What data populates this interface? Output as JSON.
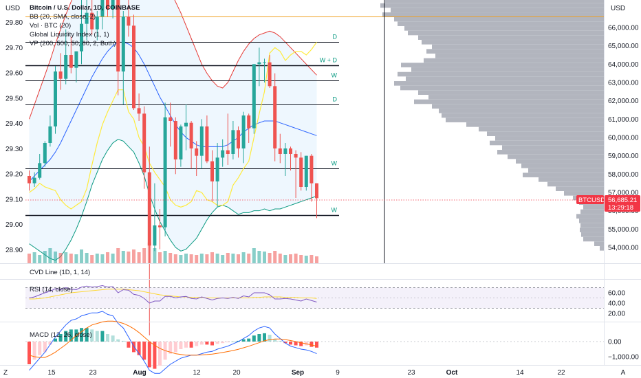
{
  "chart_data": {
    "type": "candlestick",
    "title": "Bitcoin / U.S. Dollar, 1D, COINBASE",
    "currency_left": "USD",
    "currency_right": "USD",
    "symbol_tag": "BTCUSD",
    "last_price": "56,685.21",
    "countdown": "13:29:18",
    "legend": [
      "Bitcoin / U.S. Dollar, 1D, COINBASE",
      "BB (20, SMA, close, 2)",
      "Vol · BTC (20)",
      "Global Liquidity Index (1, 1)",
      "VP (200, 500, 50, 60, 2, Both)"
    ],
    "left_axis": {
      "ticks": [
        29.8,
        29.7,
        29.6,
        29.5,
        29.4,
        29.3,
        29.2,
        29.1,
        29.0,
        28.9
      ],
      "labels": [
        "29.80",
        "29.70",
        "29.60",
        "29.50",
        "29.40",
        "29.30",
        "29.20",
        "29.10",
        "29.00",
        "28.90"
      ]
    },
    "right_axis": {
      "ticks": [
        66000,
        65000,
        64000,
        63000,
        62000,
        61000,
        60000,
        59000,
        58000,
        57000,
        56000,
        55000,
        54000
      ],
      "labels": [
        "66,000.00",
        "65,000.00",
        "64,000.00",
        "63,000.00",
        "62,000.00",
        "61,000.00",
        "60,000.00",
        "59,000.00",
        "58,000.00",
        "57,000.00",
        "56,000.00",
        "55,000.00",
        "54,000.00"
      ],
      "range": [
        53700,
        68400
      ]
    },
    "x_axis": {
      "labels": [
        "Z",
        "15",
        "23",
        "Aug",
        "12",
        "20",
        "Sep",
        "9",
        "23",
        "Oct",
        "14",
        "22",
        "A"
      ]
    },
    "candles": [
      [
        57900,
        58200,
        57100,
        57500
      ],
      [
        57500,
        58100,
        57300,
        57800
      ],
      [
        57800,
        59100,
        57700,
        58600
      ],
      [
        58600,
        59800,
        58400,
        59700
      ],
      [
        59700,
        61200,
        59500,
        60600
      ],
      [
        60600,
        63900,
        60200,
        63600
      ],
      [
        63600,
        64600,
        62600,
        63200
      ],
      [
        63200,
        65900,
        62900,
        64500
      ],
      [
        64500,
        65500,
        63500,
        63800
      ],
      [
        63800,
        64700,
        63000,
        64700
      ],
      [
        64700,
        68400,
        64000,
        66200
      ],
      [
        66200,
        67500,
        65300,
        66800
      ],
      [
        66800,
        67500,
        65600,
        65900
      ],
      [
        65900,
        66900,
        65300,
        66600
      ],
      [
        66600,
        68400,
        65900,
        68000
      ],
      [
        68000,
        68900,
        66600,
        67000
      ],
      [
        67000,
        69800,
        66500,
        68100
      ],
      [
        68100,
        68500,
        62300,
        63600
      ],
      [
        63600,
        66900,
        61800,
        66600
      ],
      [
        66600,
        70500,
        65500,
        66100
      ],
      [
        66100,
        66700,
        61500,
        61600
      ],
      [
        61600,
        62400,
        60900,
        61300
      ],
      [
        61300,
        61700,
        57200,
        58100
      ],
      [
        58100,
        59500,
        49200,
        54100
      ],
      [
        54100,
        57500,
        53800,
        55200
      ],
      [
        55200,
        56100,
        53900,
        55100
      ],
      [
        55100,
        61900,
        54600,
        61100
      ],
      [
        61100,
        61900,
        59500,
        60900
      ],
      [
        60900,
        61100,
        58000,
        58800
      ],
      [
        58800,
        60700,
        58400,
        60600
      ],
      [
        60600,
        61800,
        59300,
        60800
      ],
      [
        60800,
        60900,
        58300,
        59400
      ],
      [
        59400,
        59800,
        57900,
        59000
      ],
      [
        59000,
        61000,
        58300,
        60600
      ],
      [
        60600,
        61200,
        58600,
        58700
      ],
      [
        58700,
        59300,
        56500,
        57600
      ],
      [
        57600,
        59700,
        56200,
        58900
      ],
      [
        58900,
        59900,
        58400,
        59300
      ],
      [
        59300,
        61300,
        58500,
        59100
      ],
      [
        59100,
        60900,
        58800,
        60400
      ],
      [
        60400,
        60600,
        58900,
        59400
      ],
      [
        59400,
        61400,
        58600,
        61200
      ],
      [
        61200,
        61300,
        59700,
        60500
      ],
      [
        60500,
        64000,
        60200,
        64000
      ],
      [
        64000,
        64900,
        62800,
        64100
      ],
      [
        64100,
        64300,
        63000,
        64100
      ],
      [
        64100,
        64500,
        62700,
        62800
      ],
      [
        62800,
        63500,
        58700,
        59400
      ],
      [
        59400,
        60200,
        58600,
        59100
      ],
      [
        59100,
        59700,
        57900,
        59400
      ],
      [
        59400,
        59500,
        58200,
        59100
      ],
      [
        59100,
        59300,
        56700,
        58900
      ],
      [
        58900,
        59200,
        57100,
        57300
      ],
      [
        57300,
        59000,
        57100,
        59000
      ],
      [
        59000,
        59100,
        56500,
        57500
      ],
      [
        57500,
        57500,
        55600,
        56685
      ]
    ],
    "bb_upper": [
      61000,
      61800,
      62600,
      63400,
      64200,
      65100,
      65900,
      66700,
      67400,
      68000,
      68500,
      68900,
      69200,
      69500,
      69800,
      70100,
      70300,
      70500,
      70600,
      70700,
      70600,
      70400,
      70100,
      69900,
      69500,
      69000,
      68500,
      68000,
      67400,
      66800,
      66100,
      65400,
      64700,
      64000,
      63500,
      63100,
      62800,
      62700,
      63000,
      63600,
      64200,
      64700,
      65100,
      65400,
      65600,
      65700,
      65800,
      65700,
      65500,
      65200,
      64900,
      64600,
      64300,
      64000,
      63700,
      63400
    ],
    "bb_mid": [
      57600,
      57900,
      58200,
      58500,
      58800,
      59200,
      59700,
      60300,
      60900,
      61500,
      62100,
      62700,
      63300,
      63800,
      64300,
      64700,
      65000,
      65200,
      65200,
      65100,
      64900,
      64500,
      64000,
      63400,
      62800,
      62200,
      61700,
      61200,
      60700,
      60300,
      60000,
      59800,
      59600,
      59500,
      59500,
      59500,
      59500,
      59500,
      59600,
      59800,
      60000,
      60300,
      60500,
      60700,
      60800,
      60900,
      60900,
      60900,
      60800,
      60700,
      60600,
      60500,
      60400,
      60300,
      60200,
      60100
    ],
    "bb_lower": [
      54200,
      54000,
      53800,
      53600,
      53400,
      53300,
      53500,
      53900,
      54400,
      55000,
      55700,
      56500,
      57400,
      58100,
      58800,
      59300,
      59700,
      59900,
      59800,
      59500,
      59200,
      58600,
      57900,
      56900,
      56100,
      55400,
      54900,
      54400,
      54000,
      53800,
      53900,
      54200,
      54500,
      55000,
      55500,
      55900,
      56200,
      56300,
      56200,
      56000,
      55800,
      55900,
      55900,
      56000,
      56000,
      56100,
      56000,
      56100,
      56100,
      56200,
      56300,
      56400,
      56500,
      56600,
      56700,
      56800
    ],
    "liquidity": [
      57000,
      57200,
      57500,
      57300,
      57200,
      57100,
      56600,
      56300,
      56100,
      56300,
      56500,
      57200,
      58500,
      59700,
      60700,
      61400,
      62000,
      62600,
      62600,
      61400,
      61000,
      60000,
      59500,
      58600,
      58100,
      57700,
      57300,
      56600,
      56300,
      56200,
      56300,
      56500,
      57100,
      57000,
      56600,
      56500,
      56300,
      56300,
      56500,
      57400,
      57800,
      58300,
      58700,
      60000,
      61300,
      62500,
      64600,
      64900,
      64700,
      64200,
      64500,
      64700,
      64700,
      64500,
      64800,
      65200
    ],
    "levels": [
      {
        "price": 66600,
        "label": "",
        "color": "#f0a020"
      },
      {
        "price": 65200,
        "label": "D",
        "color": "#131722"
      },
      {
        "price": 63950,
        "label": "W + D",
        "color": "#131722"
      },
      {
        "price": 63100,
        "label": "W",
        "color": "#131722"
      },
      {
        "price": 61800,
        "label": "D",
        "color": "#131722"
      },
      {
        "price": 58300,
        "label": "W",
        "color": "#131722"
      },
      {
        "price": 55750,
        "label": "W",
        "color": "#131722"
      }
    ],
    "volume": [
      14,
      16,
      12,
      18,
      22,
      17,
      15,
      16,
      14,
      13,
      20,
      15,
      12,
      14,
      13,
      16,
      14,
      22,
      18,
      17,
      20,
      16,
      22,
      30,
      22,
      16,
      18,
      15,
      13,
      12,
      14,
      13,
      12,
      14,
      13,
      16,
      14,
      12,
      15,
      14,
      13,
      16,
      14,
      22,
      18,
      17,
      15,
      18,
      14,
      12,
      13,
      14,
      12,
      11,
      12,
      10
    ],
    "rsi": {
      "label": "RSI (14, close)",
      "ticks": [
        60.0,
        40.0,
        20.0
      ],
      "tick_labels": [
        "60.00",
        "40.00",
        "20.00"
      ],
      "bands": [
        70,
        30
      ],
      "mid": 50,
      "values": [
        50,
        52,
        56,
        60,
        63,
        68,
        66,
        70,
        67,
        66,
        71,
        73,
        71,
        72,
        74,
        71,
        72,
        60,
        66,
        65,
        57,
        55,
        49,
        40,
        44,
        44,
        53,
        53,
        50,
        52,
        53,
        49,
        48,
        52,
        49,
        46,
        49,
        50,
        49,
        51,
        49,
        54,
        52,
        60,
        60,
        60,
        56,
        48,
        48,
        49,
        48,
        46,
        44,
        48,
        45,
        42
      ],
      "signal": [
        48,
        48,
        49,
        50,
        52,
        54,
        56,
        58,
        60,
        61,
        62,
        63,
        64,
        65,
        66,
        67,
        67,
        67,
        67,
        66,
        65,
        64,
        62,
        60,
        58,
        56,
        55,
        54,
        53,
        52,
        52,
        51,
        51,
        51,
        50,
        50,
        50,
        50,
        50,
        50,
        50,
        50,
        50,
        51,
        51,
        52,
        52,
        52,
        52,
        51,
        51,
        51,
        50,
        50,
        50,
        49
      ]
    },
    "cvd_label": "CVD Line (1D, 1, 14)",
    "macd": {
      "label": "MACD (12, 26, close)",
      "ticks": [
        0,
        -1000
      ],
      "tick_labels": [
        "0.00",
        "−1,000.00"
      ],
      "hist": [
        -1500,
        -1200,
        -900,
        -700,
        -200,
        200,
        500,
        700,
        800,
        800,
        900,
        900,
        800,
        700,
        700,
        500,
        400,
        150,
        50,
        -400,
        -700,
        -900,
        -1200,
        -1700,
        -1800,
        -1600,
        -1200,
        -800,
        -700,
        -500,
        -400,
        -400,
        -300,
        -200,
        -200,
        -250,
        -150,
        -100,
        -50,
        0,
        50,
        150,
        200,
        400,
        500,
        550,
        450,
        150,
        50,
        -100,
        -200,
        -250,
        -300,
        -250,
        -350,
        -400
      ],
      "macd": [
        -1900,
        -1500,
        -1100,
        -700,
        -200,
        300,
        700,
        1100,
        1400,
        1500,
        1700,
        1800,
        1900,
        1900,
        2000,
        1800,
        1700,
        1200,
        900,
        300,
        -300,
        -800,
        -1300,
        -1900,
        -2100,
        -2100,
        -1800,
        -1500,
        -1300,
        -1100,
        -1000,
        -900,
        -900,
        -800,
        -700,
        -650,
        -500,
        -400,
        -300,
        -150,
        0,
        200,
        400,
        700,
        900,
        1000,
        900,
        500,
        200,
        -100,
        -300,
        -400,
        -500,
        -550,
        -650,
        -800
      ],
      "signal": [
        -900,
        -1000,
        -1050,
        -1050,
        -900,
        -700,
        -450,
        -200,
        100,
        400,
        650,
        900,
        1100,
        1200,
        1300,
        1350,
        1350,
        1300,
        1200,
        1050,
        850,
        600,
        300,
        0,
        -250,
        -450,
        -600,
        -700,
        -800,
        -850,
        -900,
        -900,
        -900,
        -880,
        -860,
        -830,
        -780,
        -720,
        -660,
        -590,
        -510,
        -410,
        -310,
        -190,
        -70,
        50,
        130,
        170,
        170,
        130,
        70,
        0,
        -80,
        -150,
        -220,
        -300
      ]
    },
    "volume_profile": [
      {
        "price": 68300,
        "width": 330
      },
      {
        "price": 68100,
        "width": 320
      },
      {
        "price": 67900,
        "width": 305
      },
      {
        "price": 67700,
        "width": 300
      },
      {
        "price": 67450,
        "width": 318
      },
      {
        "price": 67200,
        "width": 325
      },
      {
        "price": 66950,
        "width": 310
      },
      {
        "price": 66700,
        "width": 322
      },
      {
        "price": 66450,
        "width": 305
      },
      {
        "price": 66200,
        "width": 300
      },
      {
        "price": 65950,
        "width": 290
      },
      {
        "price": 65700,
        "width": 285
      },
      {
        "price": 65450,
        "width": 270
      },
      {
        "price": 65200,
        "width": 265
      },
      {
        "price": 64950,
        "width": 250
      },
      {
        "price": 64700,
        "width": 258
      },
      {
        "price": 64450,
        "width": 245
      },
      {
        "price": 64200,
        "width": 262
      },
      {
        "price": 63950,
        "width": 295
      },
      {
        "price": 63700,
        "width": 280
      },
      {
        "price": 63450,
        "width": 300
      },
      {
        "price": 63200,
        "width": 288
      },
      {
        "price": 62950,
        "width": 305
      },
      {
        "price": 62700,
        "width": 296
      },
      {
        "price": 62450,
        "width": 270
      },
      {
        "price": 62200,
        "width": 255
      },
      {
        "price": 61950,
        "width": 276
      },
      {
        "price": 61700,
        "width": 250
      },
      {
        "price": 61450,
        "width": 240
      },
      {
        "price": 61200,
        "width": 236
      },
      {
        "price": 60950,
        "width": 230
      },
      {
        "price": 60700,
        "width": 200
      },
      {
        "price": 60450,
        "width": 182
      },
      {
        "price": 60200,
        "width": 170
      },
      {
        "price": 59950,
        "width": 158
      },
      {
        "price": 59700,
        "width": 166
      },
      {
        "price": 59450,
        "width": 148
      },
      {
        "price": 59200,
        "width": 155
      },
      {
        "price": 58950,
        "width": 140
      },
      {
        "price": 58700,
        "width": 128
      },
      {
        "price": 58450,
        "width": 120
      },
      {
        "price": 58200,
        "width": 110
      },
      {
        "price": 57950,
        "width": 118
      },
      {
        "price": 57700,
        "width": 95
      },
      {
        "price": 57450,
        "width": 82
      },
      {
        "price": 57200,
        "width": 70
      },
      {
        "price": 56950,
        "width": 58
      },
      {
        "price": 56700,
        "width": 45
      },
      {
        "price": 56450,
        "width": 36
      },
      {
        "price": 56200,
        "width": 30
      },
      {
        "price": 55950,
        "width": 34
      },
      {
        "price": 55700,
        "width": 40
      },
      {
        "price": 55450,
        "width": 36
      },
      {
        "price": 55200,
        "width": 34
      },
      {
        "price": 54950,
        "width": 35
      },
      {
        "price": 54700,
        "width": 33
      },
      {
        "price": 54450,
        "width": 30
      },
      {
        "price": 54200,
        "width": 14
      },
      {
        "price": 53950,
        "width": 6
      }
    ],
    "grid": false,
    "legend_position": "top-left"
  },
  "colors": {
    "up": "#26a69a",
    "down": "#ef5350",
    "bb": "#2962ff",
    "bb_fill": "#e3f2fd",
    "liquidity": "#ffeb3b",
    "ema_red": "#e53935",
    "ema_green": "#089981",
    "tag": "#f23645",
    "vp": "#b2b5be",
    "rsi": "#7e57c2",
    "rsi_signal": "#fdd835",
    "macd": "#2962ff",
    "macd_signal": "#ff6d00",
    "vline": "#131722"
  }
}
